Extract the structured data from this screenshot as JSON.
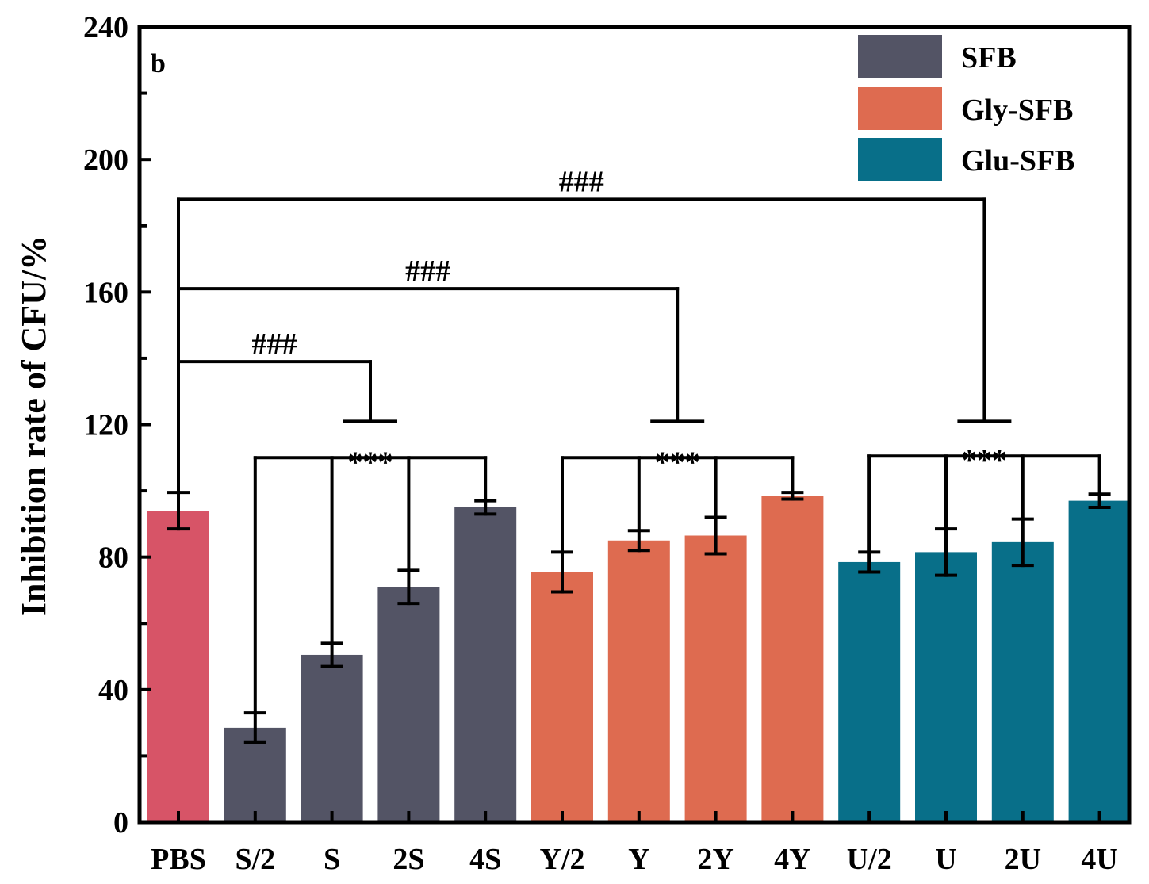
{
  "chart_data": {
    "type": "bar",
    "panel_label": "b",
    "title": "",
    "xlabel": "",
    "ylabel": "Inhibition rate of CFU/%",
    "ylim": [
      0,
      240
    ],
    "yticks": [
      0,
      40,
      80,
      120,
      160,
      200,
      240
    ],
    "yticks_labels": [
      "0",
      "40",
      "80",
      "120",
      "160",
      "200",
      "240"
    ],
    "grid": false,
    "legend_position": "top-right",
    "categories": [
      "PBS",
      "S/2",
      "S",
      "2S",
      "4S",
      "Y/2",
      "Y",
      "2Y",
      "4Y",
      "U/2",
      "U",
      "2U",
      "4U"
    ],
    "values": [
      94,
      28.5,
      50.5,
      71,
      95,
      75.5,
      85,
      86.5,
      98.5,
      78.5,
      81.5,
      84.5,
      97
    ],
    "errors": [
      5.5,
      4.5,
      3.5,
      5,
      2,
      6,
      3,
      5.5,
      1,
      3,
      7,
      7,
      2
    ],
    "bar_groups": [
      "PBS",
      "SFB",
      "SFB",
      "SFB",
      "SFB",
      "Gly-SFB",
      "Gly-SFB",
      "Gly-SFB",
      "Gly-SFB",
      "Glu-SFB",
      "Glu-SFB",
      "Glu-SFB",
      "Glu-SFB"
    ],
    "colors": {
      "PBS": "#d75467",
      "SFB": "#535465",
      "Gly-SFB": "#de6b50",
      "Glu-SFB": "#086f89",
      "axis": "#000000"
    },
    "legend": [
      "SFB",
      "Gly-SFB",
      "Glu-SFB"
    ],
    "annotations": [
      {
        "kind": "group_bracket",
        "label": "***",
        "from": 1,
        "to": 4,
        "y": 110
      },
      {
        "kind": "group_bracket",
        "label": "***",
        "from": 5,
        "to": 8,
        "y": 110
      },
      {
        "kind": "group_bracket",
        "label": "***",
        "from": 9,
        "to": 12,
        "y": 110.5
      },
      {
        "kind": "comparison",
        "label": "###",
        "from": 0,
        "group_center": 2.5,
        "y": 139,
        "cap_y": 121
      },
      {
        "kind": "comparison",
        "label": "###",
        "from": 0,
        "group_center": 6.5,
        "y": 161,
        "cap_y": 121
      },
      {
        "kind": "comparison",
        "label": "###",
        "from": 0,
        "group_center": 10.5,
        "y": 188,
        "cap_y": 121
      }
    ]
  }
}
